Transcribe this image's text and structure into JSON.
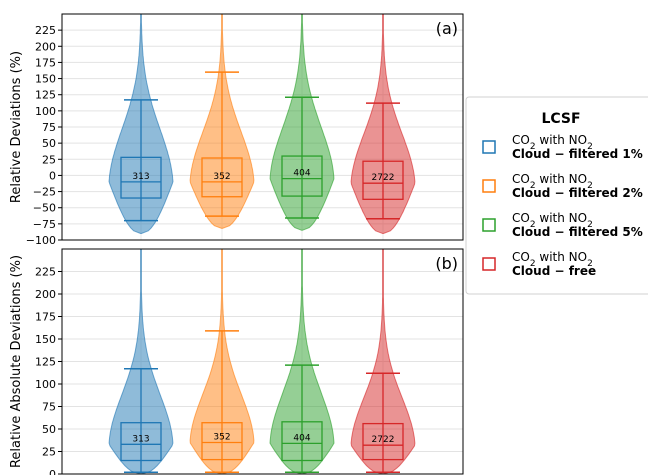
{
  "chart_data": [
    {
      "type": "violin",
      "panel_label": "(a)",
      "ylabel": "Relative Deviations (%)",
      "ylim": [
        -100,
        250
      ],
      "yticks": [
        -100,
        -75,
        -50,
        -25,
        0,
        25,
        50,
        75,
        100,
        125,
        150,
        175,
        200,
        225
      ],
      "grid": true,
      "series": [
        {
          "n": "313",
          "color": "#1f77b4",
          "q1": -35,
          "median": -10,
          "q3": 28,
          "whisker_low": -70,
          "whisker_high": 117,
          "violin_min": -90,
          "violin_max": 250
        },
        {
          "n": "352",
          "color": "#ff7f0e",
          "q1": -33,
          "median": -10,
          "q3": 27,
          "whisker_low": -63,
          "whisker_high": 160,
          "violin_min": -82,
          "violin_max": 250
        },
        {
          "n": "404",
          "color": "#2ca02c",
          "q1": -32,
          "median": -5,
          "q3": 30,
          "whisker_low": -66,
          "whisker_high": 121,
          "violin_min": -85,
          "violin_max": 250
        },
        {
          "n": "2722",
          "color": "#d62728",
          "q1": -37,
          "median": -12,
          "q3": 22,
          "whisker_low": -67,
          "whisker_high": 112,
          "violin_min": -90,
          "violin_max": 250
        }
      ]
    },
    {
      "type": "violin",
      "panel_label": "(b)",
      "ylabel": "Relative Absolute Deviations (%)",
      "ylim": [
        0,
        250
      ],
      "yticks": [
        0,
        25,
        50,
        75,
        100,
        125,
        150,
        175,
        200,
        225
      ],
      "grid": true,
      "series": [
        {
          "n": "313",
          "color": "#1f77b4",
          "q1": 15,
          "median": 33,
          "q3": 57,
          "whisker_low": 2,
          "whisker_high": 117,
          "violin_min": 0,
          "violin_max": 250
        },
        {
          "n": "352",
          "color": "#ff7f0e",
          "q1": 16,
          "median": 35,
          "q3": 57,
          "whisker_low": 2,
          "whisker_high": 159,
          "violin_min": 0,
          "violin_max": 250
        },
        {
          "n": "404",
          "color": "#2ca02c",
          "q1": 15,
          "median": 34,
          "q3": 58,
          "whisker_low": 2,
          "whisker_high": 121,
          "violin_min": 0,
          "violin_max": 250
        },
        {
          "n": "2722",
          "color": "#d62728",
          "q1": 16,
          "median": 32,
          "q3": 56,
          "whisker_low": 2,
          "whisker_high": 112,
          "violin_min": 0,
          "violin_max": 250
        }
      ]
    }
  ],
  "legend": {
    "title": "LCSF",
    "placement": "right",
    "entries": [
      {
        "line1": "CO",
        "sub": "2",
        "mid": " with NO",
        "sub2": "2",
        "line2": "Cloud − filtered 1%",
        "color": "#1f77b4"
      },
      {
        "line1": "CO",
        "sub": "2",
        "mid": " with NO",
        "sub2": "2",
        "line2": "Cloud − filtered 2%",
        "color": "#ff7f0e"
      },
      {
        "line1": "CO",
        "sub": "2",
        "mid": " with NO",
        "sub2": "2",
        "line2": "Cloud − filtered 5%",
        "color": "#2ca02c"
      },
      {
        "line1": "CO",
        "sub": "2",
        "mid": " with NO",
        "sub2": "2",
        "line2": "Cloud − free",
        "color": "#d62728"
      }
    ]
  }
}
